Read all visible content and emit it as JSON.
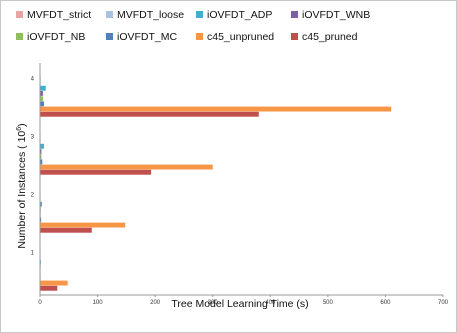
{
  "chart_data": {
    "type": "bar",
    "orientation": "horizontal",
    "categories": [
      "1",
      "2",
      "3",
      "4"
    ],
    "series": [
      {
        "name": "MVFDT_strict",
        "color": "#e8a3a3",
        "values": [
          0.4,
          0.6,
          0.9,
          1.2
        ]
      },
      {
        "name": "MVFDT_loose",
        "color": "#a9c3e0",
        "values": [
          0.4,
          0.6,
          0.9,
          1.2
        ]
      },
      {
        "name": "iOVFDT_ADP",
        "color": "#3fb0d4",
        "values": [
          1.5,
          3.5,
          7,
          10
        ]
      },
      {
        "name": "iOVFDT_WNB",
        "color": "#7d5fa3",
        "values": [
          0.6,
          1.2,
          2.5,
          5
        ]
      },
      {
        "name": "iOVFDT_NB",
        "color": "#8fbf5a",
        "values": [
          0.6,
          1.2,
          2.5,
          5
        ]
      },
      {
        "name": "iOVFDT_MC",
        "color": "#4f81bd",
        "values": [
          0.8,
          2,
          4,
          7
        ]
      },
      {
        "name": "c45_unpruned",
        "color": "#f79646",
        "values": [
          48,
          148,
          300,
          610
        ]
      },
      {
        "name": "c45_pruned",
        "color": "#c0504d",
        "values": [
          30,
          90,
          193,
          380
        ]
      }
    ],
    "title": "",
    "xlabel": "Tree Model Learning Time (s)",
    "ylabel_prefix": "Number of Instances ( 10",
    "ylabel_exponent": "6",
    "ylabel_suffix": ")",
    "xlim": [
      0,
      700
    ],
    "xticks": [
      "0",
      "100",
      "200",
      "300",
      "400",
      "500",
      "600",
      "700"
    ],
    "grid": false,
    "legend_position": "top"
  }
}
